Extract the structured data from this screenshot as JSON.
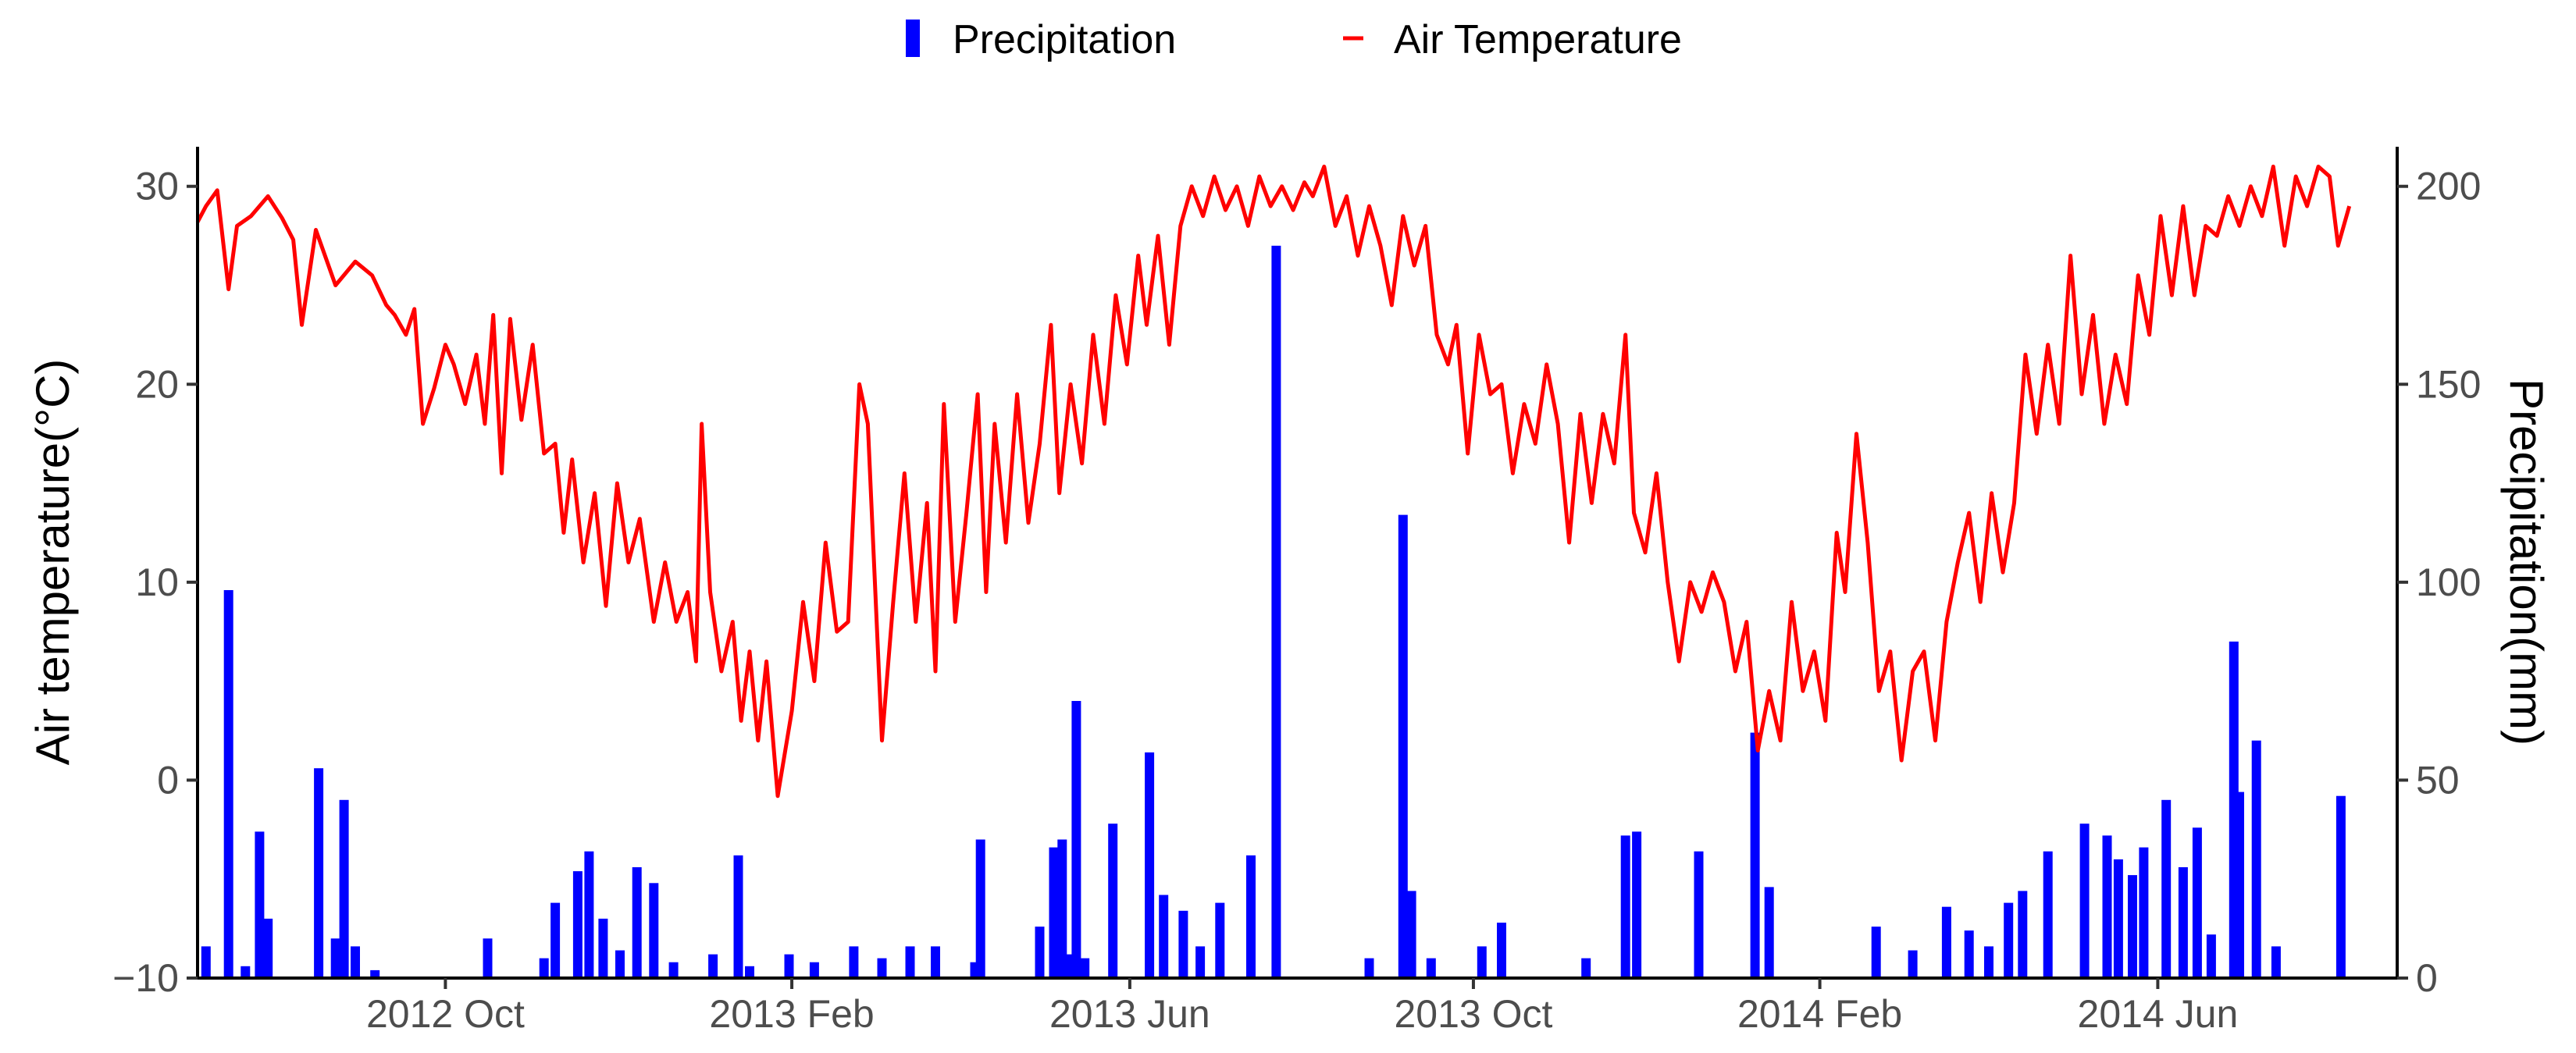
{
  "chart_data": {
    "type": "bar+line",
    "legend": {
      "position": "top",
      "items": [
        {
          "label": "Precipitation",
          "color": "#0000ff",
          "kind": "bar"
        },
        {
          "label": "Air Temperature",
          "color": "#ff0000",
          "kind": "line"
        }
      ]
    },
    "x_ticks": [
      "2012 Oct",
      "2013 Feb",
      "2013 Jun",
      "2013 Oct",
      "2014 Feb",
      "2014 Jun"
    ],
    "x_tick_dates": [
      "2012-10-01",
      "2013-02-01",
      "2013-06-01",
      "2013-10-01",
      "2014-02-01",
      "2014-06-01"
    ],
    "x_range": [
      "2012-07-05",
      "2014-08-25"
    ],
    "y_left": {
      "label": "Air temperature(°C)",
      "range": [
        -10,
        32
      ],
      "ticks": [
        "30",
        "20",
        "10",
        "0",
        "−10"
      ],
      "tick_values": [
        30,
        20,
        10,
        0,
        -10
      ]
    },
    "y_right": {
      "label": "Precipitation(mm)",
      "range": [
        0,
        210
      ],
      "ticks": [
        "200",
        "150",
        "100",
        "50",
        "0"
      ],
      "tick_values": [
        200,
        150,
        100,
        50,
        0
      ]
    },
    "temperature_series": [
      [
        "2012-07-05",
        28.2
      ],
      [
        "2012-07-08",
        29.0
      ],
      [
        "2012-07-12",
        29.8
      ],
      [
        "2012-07-16",
        24.8
      ],
      [
        "2012-07-19",
        28.0
      ],
      [
        "2012-07-24",
        28.5
      ],
      [
        "2012-07-30",
        29.5
      ],
      [
        "2012-08-04",
        28.4
      ],
      [
        "2012-08-08",
        27.3
      ],
      [
        "2012-08-11",
        23.0
      ],
      [
        "2012-08-16",
        27.8
      ],
      [
        "2012-08-23",
        25.0
      ],
      [
        "2012-08-30",
        26.2
      ],
      [
        "2012-09-05",
        25.5
      ],
      [
        "2012-09-10",
        24.0
      ],
      [
        "2012-09-13",
        23.5
      ],
      [
        "2012-09-17",
        22.5
      ],
      [
        "2012-09-20",
        23.8
      ],
      [
        "2012-09-23",
        18.0
      ],
      [
        "2012-09-27",
        19.8
      ],
      [
        "2012-10-01",
        22.0
      ],
      [
        "2012-10-04",
        21.0
      ],
      [
        "2012-10-08",
        19.0
      ],
      [
        "2012-10-12",
        21.5
      ],
      [
        "2012-10-15",
        18.0
      ],
      [
        "2012-10-18",
        23.5
      ],
      [
        "2012-10-21",
        15.5
      ],
      [
        "2012-10-24",
        23.3
      ],
      [
        "2012-10-28",
        18.2
      ],
      [
        "2012-11-01",
        22.0
      ],
      [
        "2012-11-05",
        16.5
      ],
      [
        "2012-11-09",
        17.0
      ],
      [
        "2012-11-12",
        12.5
      ],
      [
        "2012-11-15",
        16.2
      ],
      [
        "2012-11-19",
        11.0
      ],
      [
        "2012-11-23",
        14.5
      ],
      [
        "2012-11-27",
        8.8
      ],
      [
        "2012-12-01",
        15.0
      ],
      [
        "2012-12-05",
        11.0
      ],
      [
        "2012-12-09",
        13.2
      ],
      [
        "2012-12-14",
        8.0
      ],
      [
        "2012-12-18",
        11.0
      ],
      [
        "2012-12-22",
        8.0
      ],
      [
        "2012-12-26",
        9.5
      ],
      [
        "2012-12-29",
        6.0
      ],
      [
        "2012-12-31",
        18.0
      ],
      [
        "2013-01-03",
        9.5
      ],
      [
        "2013-01-07",
        5.5
      ],
      [
        "2013-01-11",
        8.0
      ],
      [
        "2013-01-14",
        3.0
      ],
      [
        "2013-01-17",
        6.5
      ],
      [
        "2013-01-20",
        2.0
      ],
      [
        "2013-01-23",
        6.0
      ],
      [
        "2013-01-27",
        -0.8
      ],
      [
        "2013-02-01",
        3.5
      ],
      [
        "2013-02-05",
        9.0
      ],
      [
        "2013-02-09",
        5.0
      ],
      [
        "2013-02-13",
        12.0
      ],
      [
        "2013-02-17",
        7.5
      ],
      [
        "2013-02-21",
        8.0
      ],
      [
        "2013-02-25",
        20.0
      ],
      [
        "2013-02-28",
        18.0
      ],
      [
        "2013-03-05",
        2.0
      ],
      [
        "2013-03-09",
        9.0
      ],
      [
        "2013-03-13",
        15.5
      ],
      [
        "2013-03-17",
        8.0
      ],
      [
        "2013-03-21",
        14.0
      ],
      [
        "2013-03-24",
        5.5
      ],
      [
        "2013-03-27",
        19.0
      ],
      [
        "2013-03-31",
        8.0
      ],
      [
        "2013-04-04",
        13.5
      ],
      [
        "2013-04-08",
        19.5
      ],
      [
        "2013-04-11",
        9.5
      ],
      [
        "2013-04-14",
        18.0
      ],
      [
        "2013-04-18",
        12.0
      ],
      [
        "2013-04-22",
        19.5
      ],
      [
        "2013-04-26",
        13.0
      ],
      [
        "2013-04-30",
        17.0
      ],
      [
        "2013-05-04",
        23.0
      ],
      [
        "2013-05-07",
        14.5
      ],
      [
        "2013-05-11",
        20.0
      ],
      [
        "2013-05-15",
        16.0
      ],
      [
        "2013-05-19",
        22.5
      ],
      [
        "2013-05-23",
        18.0
      ],
      [
        "2013-05-27",
        24.5
      ],
      [
        "2013-05-31",
        21.0
      ],
      [
        "2013-06-04",
        26.5
      ],
      [
        "2013-06-07",
        23.0
      ],
      [
        "2013-06-11",
        27.5
      ],
      [
        "2013-06-15",
        22.0
      ],
      [
        "2013-06-19",
        28.0
      ],
      [
        "2013-06-23",
        30.0
      ],
      [
        "2013-06-27",
        28.5
      ],
      [
        "2013-07-01",
        30.5
      ],
      [
        "2013-07-05",
        28.8
      ],
      [
        "2013-07-09",
        30.0
      ],
      [
        "2013-07-13",
        28.0
      ],
      [
        "2013-07-17",
        30.5
      ],
      [
        "2013-07-21",
        29.0
      ],
      [
        "2013-07-25",
        30.0
      ],
      [
        "2013-07-29",
        28.8
      ],
      [
        "2013-08-02",
        30.2
      ],
      [
        "2013-08-05",
        29.5
      ],
      [
        "2013-08-09",
        31.0
      ],
      [
        "2013-08-13",
        28.0
      ],
      [
        "2013-08-17",
        29.5
      ],
      [
        "2013-08-21",
        26.5
      ],
      [
        "2013-08-25",
        29.0
      ],
      [
        "2013-08-29",
        27.0
      ],
      [
        "2013-09-02",
        24.0
      ],
      [
        "2013-09-06",
        28.5
      ],
      [
        "2013-09-10",
        26.0
      ],
      [
        "2013-09-14",
        28.0
      ],
      [
        "2013-09-18",
        22.5
      ],
      [
        "2013-09-22",
        21.0
      ],
      [
        "2013-09-25",
        23.0
      ],
      [
        "2013-09-29",
        16.5
      ],
      [
        "2013-10-03",
        22.5
      ],
      [
        "2013-10-07",
        19.5
      ],
      [
        "2013-10-11",
        20.0
      ],
      [
        "2013-10-15",
        15.5
      ],
      [
        "2013-10-19",
        19.0
      ],
      [
        "2013-10-23",
        17.0
      ],
      [
        "2013-10-27",
        21.0
      ],
      [
        "2013-10-31",
        18.0
      ],
      [
        "2013-11-04",
        12.0
      ],
      [
        "2013-11-08",
        18.5
      ],
      [
        "2013-11-12",
        14.0
      ],
      [
        "2013-11-16",
        18.5
      ],
      [
        "2013-11-20",
        16.0
      ],
      [
        "2013-11-24",
        22.5
      ],
      [
        "2013-11-27",
        13.5
      ],
      [
        "2013-12-01",
        11.5
      ],
      [
        "2013-12-05",
        15.5
      ],
      [
        "2013-12-09",
        10.0
      ],
      [
        "2013-12-13",
        6.0
      ],
      [
        "2013-12-17",
        10.0
      ],
      [
        "2013-12-21",
        8.5
      ],
      [
        "2013-12-25",
        10.5
      ],
      [
        "2013-12-29",
        9.0
      ],
      [
        "2014-01-02",
        5.5
      ],
      [
        "2014-01-06",
        8.0
      ],
      [
        "2014-01-10",
        1.5
      ],
      [
        "2014-01-14",
        4.5
      ],
      [
        "2014-01-18",
        2.0
      ],
      [
        "2014-01-22",
        9.0
      ],
      [
        "2014-01-26",
        4.5
      ],
      [
        "2014-01-30",
        6.5
      ],
      [
        "2014-02-03",
        3.0
      ],
      [
        "2014-02-07",
        12.5
      ],
      [
        "2014-02-10",
        9.5
      ],
      [
        "2014-02-14",
        17.5
      ],
      [
        "2014-02-18",
        12.0
      ],
      [
        "2014-02-22",
        4.5
      ],
      [
        "2014-02-26",
        6.5
      ],
      [
        "2014-03-02",
        1.0
      ],
      [
        "2014-03-06",
        5.5
      ],
      [
        "2014-03-10",
        6.5
      ],
      [
        "2014-03-14",
        2.0
      ],
      [
        "2014-03-18",
        8.0
      ],
      [
        "2014-03-22",
        11.0
      ],
      [
        "2014-03-26",
        13.5
      ],
      [
        "2014-03-30",
        9.0
      ],
      [
        "2014-04-03",
        14.5
      ],
      [
        "2014-04-07",
        10.5
      ],
      [
        "2014-04-11",
        14.0
      ],
      [
        "2014-04-15",
        21.5
      ],
      [
        "2014-04-19",
        17.5
      ],
      [
        "2014-04-23",
        22.0
      ],
      [
        "2014-04-27",
        18.0
      ],
      [
        "2014-05-01",
        26.5
      ],
      [
        "2014-05-05",
        19.5
      ],
      [
        "2014-05-09",
        23.5
      ],
      [
        "2014-05-13",
        18.0
      ],
      [
        "2014-05-17",
        21.5
      ],
      [
        "2014-05-21",
        19.0
      ],
      [
        "2014-05-25",
        25.5
      ],
      [
        "2014-05-29",
        22.5
      ],
      [
        "2014-06-02",
        28.5
      ],
      [
        "2014-06-06",
        24.5
      ],
      [
        "2014-06-10",
        29.0
      ],
      [
        "2014-06-14",
        24.5
      ],
      [
        "2014-06-18",
        28.0
      ],
      [
        "2014-06-22",
        27.5
      ],
      [
        "2014-06-26",
        29.5
      ],
      [
        "2014-06-30",
        28.0
      ],
      [
        "2014-07-04",
        30.0
      ],
      [
        "2014-07-08",
        28.5
      ],
      [
        "2014-07-12",
        31.0
      ],
      [
        "2014-07-16",
        27.0
      ],
      [
        "2014-07-20",
        30.5
      ],
      [
        "2014-07-24",
        29.0
      ],
      [
        "2014-07-28",
        31.0
      ],
      [
        "2014-08-01",
        30.5
      ],
      [
        "2014-08-04",
        27.0
      ],
      [
        "2014-08-08",
        29.0
      ]
    ],
    "precipitation_series": [
      [
        "2012-07-08",
        8
      ],
      [
        "2012-07-16",
        98
      ],
      [
        "2012-07-22",
        3
      ],
      [
        "2012-07-27",
        37
      ],
      [
        "2012-07-30",
        15
      ],
      [
        "2012-08-17",
        53
      ],
      [
        "2012-08-23",
        10
      ],
      [
        "2012-08-26",
        45
      ],
      [
        "2012-08-30",
        8
      ],
      [
        "2012-09-06",
        2
      ],
      [
        "2012-10-16",
        10
      ],
      [
        "2012-11-05",
        5
      ],
      [
        "2012-11-09",
        19
      ],
      [
        "2012-11-17",
        27
      ],
      [
        "2012-11-21",
        32
      ],
      [
        "2012-11-26",
        15
      ],
      [
        "2012-12-02",
        7
      ],
      [
        "2012-12-08",
        28
      ],
      [
        "2012-12-14",
        24
      ],
      [
        "2012-12-21",
        4
      ],
      [
        "2013-01-04",
        6
      ],
      [
        "2013-01-13",
        31
      ],
      [
        "2013-01-17",
        3
      ],
      [
        "2013-01-31",
        6
      ],
      [
        "2013-02-09",
        4
      ],
      [
        "2013-02-23",
        8
      ],
      [
        "2013-03-05",
        5
      ],
      [
        "2013-03-15",
        8
      ],
      [
        "2013-03-24",
        8
      ],
      [
        "2013-04-07",
        4
      ],
      [
        "2013-04-09",
        35
      ],
      [
        "2013-04-30",
        13
      ],
      [
        "2013-05-05",
        33
      ],
      [
        "2013-05-08",
        35
      ],
      [
        "2013-05-10",
        6
      ],
      [
        "2013-05-13",
        70
      ],
      [
        "2013-05-16",
        5
      ],
      [
        "2013-05-26",
        39
      ],
      [
        "2013-06-08",
        57
      ],
      [
        "2013-06-13",
        21
      ],
      [
        "2013-06-20",
        17
      ],
      [
        "2013-06-26",
        8
      ],
      [
        "2013-07-03",
        19
      ],
      [
        "2013-07-14",
        31
      ],
      [
        "2013-07-23",
        185
      ],
      [
        "2013-08-25",
        5
      ],
      [
        "2013-09-06",
        117
      ],
      [
        "2013-09-09",
        22
      ],
      [
        "2013-09-16",
        5
      ],
      [
        "2013-10-04",
        8
      ],
      [
        "2013-10-11",
        14
      ],
      [
        "2013-11-10",
        5
      ],
      [
        "2013-11-24",
        36
      ],
      [
        "2013-11-28",
        37
      ],
      [
        "2013-12-20",
        32
      ],
      [
        "2014-01-09",
        62
      ],
      [
        "2014-01-14",
        23
      ],
      [
        "2014-02-21",
        13
      ],
      [
        "2014-03-06",
        7
      ],
      [
        "2014-03-18",
        18
      ],
      [
        "2014-03-26",
        12
      ],
      [
        "2014-04-02",
        8
      ],
      [
        "2014-04-09",
        19
      ],
      [
        "2014-04-14",
        22
      ],
      [
        "2014-04-23",
        32
      ],
      [
        "2014-05-06",
        39
      ],
      [
        "2014-05-14",
        36
      ],
      [
        "2014-05-18",
        30
      ],
      [
        "2014-05-23",
        26
      ],
      [
        "2014-05-27",
        33
      ],
      [
        "2014-06-04",
        45
      ],
      [
        "2014-06-10",
        28
      ],
      [
        "2014-06-15",
        38
      ],
      [
        "2014-06-20",
        11
      ],
      [
        "2014-06-28",
        85
      ],
      [
        "2014-06-30",
        47
      ],
      [
        "2014-07-06",
        60
      ],
      [
        "2014-07-13",
        8
      ],
      [
        "2014-08-05",
        46
      ]
    ]
  }
}
